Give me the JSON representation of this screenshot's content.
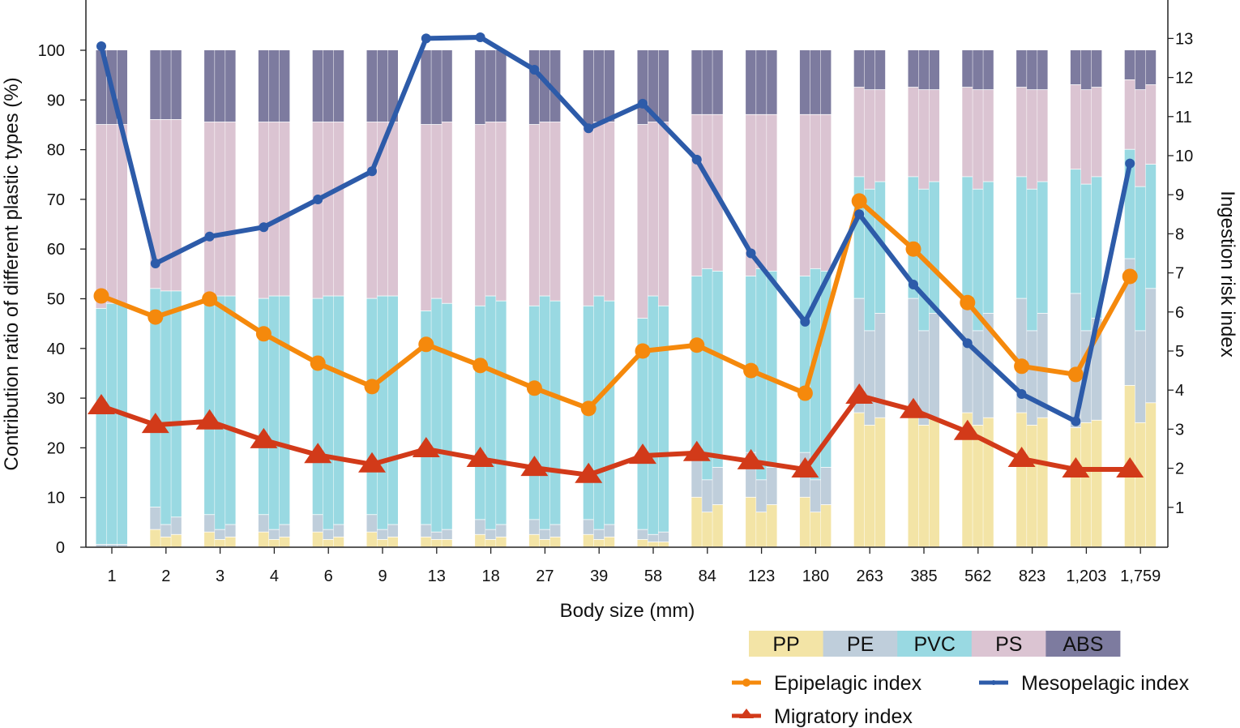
{
  "chart_data": {
    "type": "bar",
    "subtype": "grouped stacked bar (percent) with line overlay on secondary axis",
    "xlabel": "Body size (mm)",
    "ylabel": "Contribution ratio of different plastic types (%)",
    "y2label": "Ingestion risk index",
    "ylim": [
      0,
      110
    ],
    "y2lim": [
      0,
      14
    ],
    "yticks": [
      0,
      10,
      20,
      30,
      40,
      50,
      60,
      70,
      80,
      90,
      100
    ],
    "y2ticks": [
      1,
      2,
      3,
      4,
      5,
      6,
      7,
      8,
      9,
      10,
      11,
      12,
      13
    ],
    "grid": false,
    "legend_placement": "bottom-right",
    "categories": [
      "1",
      "2",
      "3",
      "4",
      "6",
      "9",
      "13",
      "18",
      "27",
      "39",
      "58",
      "84",
      "123",
      "180",
      "263",
      "385",
      "562",
      "823",
      "1,203",
      "1,759"
    ],
    "stack_types": [
      {
        "name": "PP",
        "color": "#f3e4a6"
      },
      {
        "name": "PE",
        "color": "#bfcedb"
      },
      {
        "name": "PVC",
        "color": "#99d9e2"
      },
      {
        "name": "PS",
        "color": "#dbc4d2"
      },
      {
        "name": "ABS",
        "color": "#7d7b9f"
      }
    ],
    "bars_per_category": 3,
    "stacks": [
      [
        [
          0,
          0.5,
          47.5,
          37,
          15
        ],
        [
          0,
          0.5,
          48.5,
          36,
          15
        ],
        [
          0,
          0.5,
          48.5,
          36,
          15
        ]
      ],
      [
        [
          3.5,
          4.5,
          44,
          34,
          14
        ],
        [
          2,
          2.5,
          47,
          34.5,
          14
        ],
        [
          2.5,
          3.5,
          45.5,
          34.5,
          14
        ]
      ],
      [
        [
          3,
          3.5,
          43.5,
          35.5,
          14.5
        ],
        [
          1.5,
          2,
          47,
          35,
          14.5
        ],
        [
          2,
          2.5,
          46,
          35,
          14.5
        ]
      ],
      [
        [
          3,
          3.5,
          43.5,
          35.5,
          14.5
        ],
        [
          1.5,
          2,
          47,
          35,
          14.5
        ],
        [
          2,
          2.5,
          46,
          35,
          14.5
        ]
      ],
      [
        [
          3,
          3.5,
          43.5,
          35.5,
          14.5
        ],
        [
          1.5,
          2,
          47,
          35,
          14.5
        ],
        [
          2,
          2.5,
          46,
          35,
          14.5
        ]
      ],
      [
        [
          3,
          3.5,
          43.5,
          35.5,
          14.5
        ],
        [
          1.5,
          2,
          47,
          35,
          14.5
        ],
        [
          2,
          2.5,
          46,
          35,
          14.5
        ]
      ],
      [
        [
          2,
          2.5,
          43,
          37.5,
          15
        ],
        [
          1.5,
          1.5,
          47,
          35,
          15
        ],
        [
          1.5,
          2,
          45.5,
          36.5,
          14.5
        ]
      ],
      [
        [
          2.5,
          3,
          43,
          36.5,
          15
        ],
        [
          1.5,
          2,
          47,
          35,
          14.5
        ],
        [
          2,
          2.5,
          45,
          36,
          14.5
        ]
      ],
      [
        [
          2.5,
          3,
          43,
          36.5,
          15
        ],
        [
          1.5,
          2,
          47,
          35,
          14.5
        ],
        [
          2,
          2.5,
          45,
          36,
          14.5
        ]
      ],
      [
        [
          2.5,
          3,
          43,
          36.5,
          15
        ],
        [
          1.5,
          2,
          47,
          35,
          14.5
        ],
        [
          2,
          2.5,
          45,
          36,
          14.5
        ]
      ],
      [
        [
          1.5,
          2,
          42.5,
          39,
          15
        ],
        [
          1,
          1.5,
          48,
          35,
          14.5
        ],
        [
          1,
          2,
          45.5,
          37,
          14.5
        ]
      ],
      [
        [
          10,
          9,
          35.5,
          32.5,
          13
        ],
        [
          7,
          6.5,
          42.5,
          31,
          13
        ],
        [
          8.5,
          7.5,
          39.5,
          31.5,
          13
        ]
      ],
      [
        [
          10,
          9,
          35.5,
          32.5,
          13
        ],
        [
          7,
          6.5,
          42.5,
          31,
          13
        ],
        [
          8.5,
          7.5,
          39.5,
          31.5,
          13
        ]
      ],
      [
        [
          10,
          9,
          35.5,
          32.5,
          13
        ],
        [
          7,
          6.5,
          42.5,
          31,
          13
        ],
        [
          8.5,
          7.5,
          39.5,
          31.5,
          13
        ]
      ],
      [
        [
          27,
          23,
          24.5,
          18,
          7.5
        ],
        [
          24.5,
          19,
          28.5,
          20,
          8
        ],
        [
          26,
          21,
          26.5,
          18.5,
          8
        ]
      ],
      [
        [
          27,
          23,
          24.5,
          18,
          7.5
        ],
        [
          24.5,
          19,
          28.5,
          20,
          8
        ],
        [
          26,
          21,
          26.5,
          18.5,
          8
        ]
      ],
      [
        [
          27,
          23,
          24.5,
          18,
          7.5
        ],
        [
          24.5,
          19,
          28.5,
          20,
          8
        ],
        [
          26,
          21,
          26.5,
          18.5,
          8
        ]
      ],
      [
        [
          27,
          23,
          24.5,
          18,
          7.5
        ],
        [
          24.5,
          19,
          28.5,
          20,
          8
        ],
        [
          26,
          21,
          26.5,
          18.5,
          8
        ]
      ],
      [
        [
          24,
          27,
          25,
          17,
          7
        ],
        [
          25,
          18.5,
          29.5,
          19,
          8
        ],
        [
          25.5,
          20.5,
          28.5,
          18,
          7.5
        ]
      ],
      [
        [
          32.5,
          25.5,
          22,
          14,
          6
        ],
        [
          25,
          18.5,
          29,
          19.5,
          8
        ],
        [
          29,
          23,
          25,
          16,
          7
        ]
      ]
    ],
    "lines": [
      {
        "name": "Epipelagic index",
        "color": "#f5890c",
        "marker": "circle",
        "axis": "right",
        "values": [
          6.41,
          5.87,
          6.33,
          5.44,
          4.69,
          4.09,
          5.17,
          4.63,
          4.05,
          3.53,
          5.0,
          5.15,
          4.5,
          3.92,
          8.84,
          7.61,
          6.24,
          4.61,
          4.4,
          6.91
        ]
      },
      {
        "name": "Mesopelagic index",
        "color": "#2d5ba9",
        "marker": "dot",
        "axis": "right",
        "values": [
          12.8,
          7.24,
          7.93,
          8.17,
          8.88,
          9.6,
          13.0,
          13.03,
          12.2,
          10.7,
          11.33,
          9.9,
          7.5,
          5.75,
          8.5,
          6.7,
          5.2,
          3.9,
          3.2,
          9.8
        ]
      },
      {
        "name": "Migratory index",
        "color": "#d23a19",
        "marker": "triangle",
        "axis": "right",
        "values": [
          3.59,
          3.11,
          3.2,
          2.72,
          2.34,
          2.1,
          2.49,
          2.24,
          2.01,
          1.83,
          2.32,
          2.39,
          2.18,
          1.97,
          3.86,
          3.49,
          2.93,
          2.24,
          1.97,
          1.97
        ]
      }
    ]
  }
}
